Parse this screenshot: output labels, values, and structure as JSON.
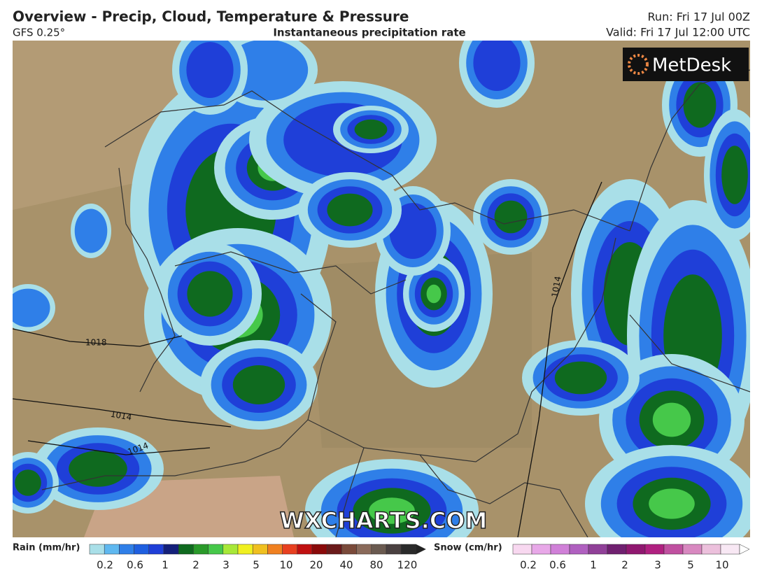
{
  "header": {
    "title": "Overview - Precip, Cloud, Temperature & Pressure",
    "model": "GFS 0.25°",
    "subtitle": "Instantaneous precipitation rate",
    "run": "Run: Fri 17 Jul 00Z",
    "valid": "Valid: Fri 17 Jul 12:00 UTC"
  },
  "map": {
    "logo": "MetDesk",
    "watermark": "WXCHARTS.COM",
    "isobar_labels": [
      "1018",
      "1014",
      "1014",
      "1014"
    ]
  },
  "legend": {
    "rain": {
      "label": "Rain (mm/hr)",
      "ticks": [
        0.2,
        0.6,
        1,
        2,
        3,
        5,
        10,
        20,
        40,
        80,
        120
      ]
    },
    "snow": {
      "label": "Snow (cm/hr)",
      "ticks": [
        0.2,
        0.6,
        1,
        2,
        3,
        5,
        10
      ]
    }
  }
}
